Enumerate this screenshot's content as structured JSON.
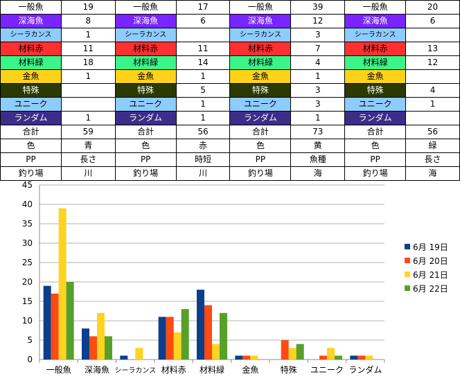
{
  "colors": {
    "一般魚": "#ffffff",
    "深海魚": "#7a25ff",
    "シーラカンス": "#8ecbff",
    "材料赤": "#ff3030",
    "材料緑": "#3cf58a",
    "金魚": "#ffd21a",
    "特殊": "#2a3a00",
    "ユニーク": "#8ecbff",
    "ランダム": "#3d2d88"
  },
  "label_text_colors": {
    "一般魚": "#000000",
    "深海魚": "#ffffff",
    "シーラカンス": "#000000",
    "材料赤": "#000000",
    "材料緑": "#000000",
    "金魚": "#000000",
    "特殊": "#ffffff",
    "ユニーク": "#000000",
    "ランダム": "#ffffff"
  },
  "table": {
    "groups": [
      {
        "rows": [
          [
            "一般魚",
            "19"
          ],
          [
            "深海魚",
            "8"
          ],
          [
            "シーラカンス",
            "1"
          ],
          [
            "材料赤",
            "11"
          ],
          [
            "材料緑",
            "18"
          ],
          [
            "金魚",
            "1"
          ],
          [
            "特殊",
            ""
          ],
          [
            "ユニーク",
            ""
          ],
          [
            "ランダム",
            "1"
          ],
          [
            "合計",
            "59"
          ],
          [
            "色",
            "青"
          ],
          [
            "PP",
            "長さ"
          ],
          [
            "釣り場",
            "川"
          ]
        ]
      },
      {
        "rows": [
          [
            "一般魚",
            "17"
          ],
          [
            "深海魚",
            "6"
          ],
          [
            "シーラカンス",
            ""
          ],
          [
            "材料赤",
            "11"
          ],
          [
            "材料緑",
            "14"
          ],
          [
            "金魚",
            "1"
          ],
          [
            "特殊",
            "5"
          ],
          [
            "ユニーク",
            "1"
          ],
          [
            "ランダム",
            "1"
          ],
          [
            "合計",
            "56"
          ],
          [
            "色",
            "赤"
          ],
          [
            "PP",
            "時短"
          ],
          [
            "釣り場",
            "川"
          ]
        ]
      },
      {
        "rows": [
          [
            "一般魚",
            "39"
          ],
          [
            "深海魚",
            "12"
          ],
          [
            "シーラカンス",
            "3"
          ],
          [
            "材料赤",
            "7"
          ],
          [
            "材料緑",
            "4"
          ],
          [
            "金魚",
            "1"
          ],
          [
            "特殊",
            "3"
          ],
          [
            "ユニーク",
            "3"
          ],
          [
            "ランダム",
            "1"
          ],
          [
            "合計",
            "73"
          ],
          [
            "色",
            "黄"
          ],
          [
            "PP",
            "魚種"
          ],
          [
            "釣り場",
            "海"
          ]
        ]
      },
      {
        "rows": [
          [
            "一般魚",
            "20"
          ],
          [
            "深海魚",
            "6"
          ],
          [
            "シーラカンス",
            ""
          ],
          [
            "材料赤",
            "13"
          ],
          [
            "材料緑",
            "12"
          ],
          [
            "金魚",
            ""
          ],
          [
            "特殊",
            "4"
          ],
          [
            "ユニーク",
            "1"
          ],
          [
            "ランダム",
            ""
          ],
          [
            "合計",
            "56"
          ],
          [
            "色",
            "緑"
          ],
          [
            "PP",
            "長さ"
          ],
          [
            "釣り場",
            "海"
          ]
        ]
      }
    ]
  },
  "chart_data": {
    "type": "bar",
    "categories": [
      "一般魚",
      "深海魚",
      "シーラカンス",
      "材料赤",
      "材料緑",
      "金魚",
      "特殊",
      "ユニーク",
      "ランダム"
    ],
    "series": [
      {
        "name": "6月 19日",
        "color": "#0b3f8c",
        "values": [
          19,
          8,
          1,
          11,
          18,
          1,
          0,
          0,
          1
        ]
      },
      {
        "name": "6月 20日",
        "color": "#ff4a12",
        "values": [
          17,
          6,
          0,
          11,
          14,
          1,
          5,
          1,
          1
        ]
      },
      {
        "name": "6月 21日",
        "color": "#ffd320",
        "values": [
          39,
          12,
          3,
          7,
          4,
          1,
          3,
          3,
          1
        ]
      },
      {
        "name": "6月 22日",
        "color": "#57a02a",
        "values": [
          20,
          6,
          0,
          13,
          12,
          0,
          4,
          1,
          0
        ]
      }
    ],
    "y_ticks": [
      "0",
      "5",
      "10",
      "15",
      "20",
      "25",
      "30",
      "35",
      "40",
      "45"
    ],
    "ylim": [
      0,
      45
    ],
    "grid": true,
    "legend": "right"
  }
}
